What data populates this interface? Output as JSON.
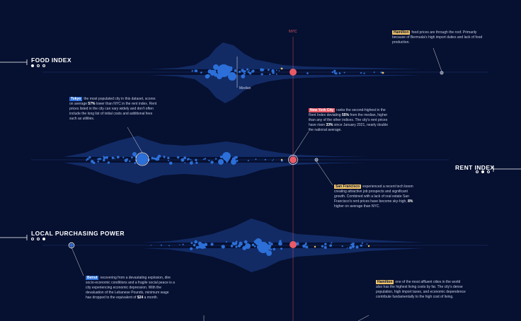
{
  "colors": {
    "background": "#061030",
    "city_dot": "#2c6fd8",
    "nyc_dot": "#e95b67",
    "highlight_dot": "#f0c46a",
    "density": "#15306e",
    "nyc_line": "#e95b67"
  },
  "labels": {
    "nyc": "NYC",
    "median": "Median"
  },
  "sections": [
    {
      "title": "FOOD INDEX",
      "indicator": [
        true,
        false,
        false
      ],
      "side": "left"
    },
    {
      "title": "RENT INDEX",
      "indicator": [
        false,
        true,
        false
      ],
      "side": "right"
    },
    {
      "title": "LOCAL PURCHASING POWER",
      "indicator": [
        false,
        false,
        true
      ],
      "side": "left"
    }
  ],
  "annotations": [
    {
      "tag": "Hamilton",
      "tag_style": "gold",
      "text": "food prices are through the roof. Primarily because of Bermuda's high import duties and lack of food production."
    },
    {
      "tag": "Tokyo",
      "tag_style": "blue",
      "parts": [
        "the most populated city in this dataset, scores on average ",
        "57%",
        " lower than NYC in the rent index. Rent prices listed in the city can vary widely and don't often include the long list of initial costs and additional fees such as utilities."
      ]
    },
    {
      "tag": "New York City",
      "tag_style": "red",
      "parts": [
        "ranks the second-highest in the Rent Index deviating ",
        "55%",
        " from the median, higher than any of the other indices. The city's rent prices have risen ",
        "33%",
        " since January 2021, nearly double the national average."
      ]
    },
    {
      "tag": "San Francisco",
      "tag_style": "gold",
      "parts": [
        "experienced a recent tech boom creating attractive job prospects and significant growth. Combined with a lack of real estate San Francisco's rent prices have become sky-high, ",
        "8%",
        " higher on average than NYC."
      ]
    },
    {
      "tag": "Beirut",
      "tag_style": "blue",
      "parts": [
        "recovering from a devastating explosion, dire socio-economic conditions and a fragile social peace is a city experiencing economic depression. With the devaluation of the Lebanese Pounds, minimum wage has dropped to the equivalent of ",
        "$24",
        " a month."
      ]
    },
    {
      "tag": "Hamilton",
      "tag_style": "gold",
      "text": "one of the most affluent cities in the world also has the highest living costs by far. The city's dense population, high import taxes, and economic dependence contribute fundamentally to the high cost of living."
    }
  ],
  "chart_data": [
    {
      "type": "scatter",
      "name": "Food Index",
      "reference_city": "New York City",
      "points": [
        {
          "city": "Hamilton",
          "value": 1.55,
          "size": "small",
          "style": "ring"
        },
        {
          "city": "New York City",
          "value": 1.0,
          "size": "medium",
          "style": "nyc"
        }
      ],
      "median": 0.7,
      "distribution": "most cities between 0.45 and 0.95 of NYC"
    },
    {
      "type": "scatter",
      "name": "Rent Index",
      "reference_city": "New York City",
      "points": [
        {
          "city": "Tokyo",
          "value": 0.43,
          "size": "large",
          "style": "ring"
        },
        {
          "city": "New York City",
          "value": 1.0,
          "size": "medium",
          "style": "nyc"
        },
        {
          "city": "San Francisco",
          "value": 1.08,
          "size": "small",
          "style": "ring"
        }
      ],
      "distribution": "most cities between 0.2 and 0.75 of NYC"
    },
    {
      "type": "scatter",
      "name": "Local Purchasing Power",
      "reference_city": "New York City",
      "points": [
        {
          "city": "Beirut",
          "value": 0.09,
          "size": "small",
          "style": "ring"
        },
        {
          "city": "New York City",
          "value": 1.0,
          "size": "medium",
          "style": "nyc"
        }
      ],
      "distribution": "most cities between 0.6 and 1.3 of NYC"
    }
  ]
}
